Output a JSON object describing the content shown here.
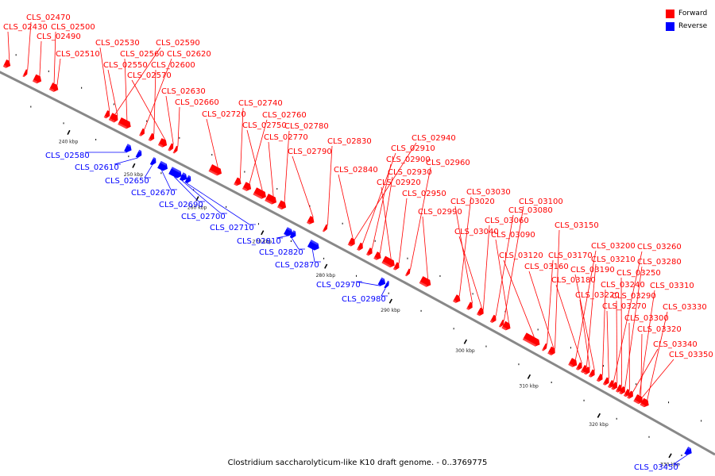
{
  "caption": "Clostridium saccharolyticum-like K10 draft genome. - 0..3769775",
  "legend": [
    {
      "label": "Forward",
      "color": "#ff0000"
    },
    {
      "label": "Reverse",
      "color": "#0000ff"
    }
  ],
  "colors": {
    "forward": "#ff0000",
    "reverse": "#0000ff",
    "backbone": "#888888"
  },
  "ticks": [
    "240 kbp",
    "250 kbp",
    "260 kbp",
    "270 kbp",
    "280 kbp",
    "290 kbp",
    "300 kbp",
    "310 kbp",
    "320 kbp",
    "330 kbp"
  ],
  "forward_genes": [
    "CLS_02470",
    "CLS_02430",
    "CLS_02500",
    "CLS_02490",
    "CLS_02510",
    "CLS_02530",
    "CLS_02590",
    "CLS_02560",
    "CLS_02620",
    "CLS_02550",
    "CLS_02600",
    "CLS_02570",
    "CLS_02630",
    "CLS_02660",
    "CLS_02740",
    "CLS_02720",
    "CLS_02760",
    "CLS_02750",
    "CLS_02780",
    "CLS_02770",
    "CLS_02830",
    "CLS_02790",
    "CLS_02940",
    "CLS_02910",
    "CLS_02900",
    "CLS_02960",
    "CLS_02840",
    "CLS_02930",
    "CLS_02920",
    "CLS_02950",
    "CLS_03030",
    "CLS_03020",
    "CLS_02990",
    "CLS_03100",
    "CLS_03080",
    "CLS_03060",
    "CLS_03040",
    "CLS_03150",
    "CLS_03090",
    "CLS_03120",
    "CLS_03170",
    "CLS_03200",
    "CLS_03260",
    "CLS_03210",
    "CLS_03280",
    "CLS_03160",
    "CLS_03190",
    "CLS_03250",
    "CLS_03180",
    "CLS_03240",
    "CLS_03310",
    "CLS_03220",
    "CLS_03290",
    "CLS_03270",
    "CLS_03330",
    "CLS_03300",
    "CLS_03320",
    "CLS_03340",
    "CLS_03350"
  ],
  "reverse_genes": [
    "CLS_02580",
    "CLS_02610",
    "CLS_02650",
    "CLS_02670",
    "CLS_02690",
    "CLS_02700",
    "CLS_02710",
    "CLS_02810",
    "CLS_02820",
    "CLS_02870",
    "CLS_02970",
    "CLS_02980",
    "CLS_03450"
  ]
}
